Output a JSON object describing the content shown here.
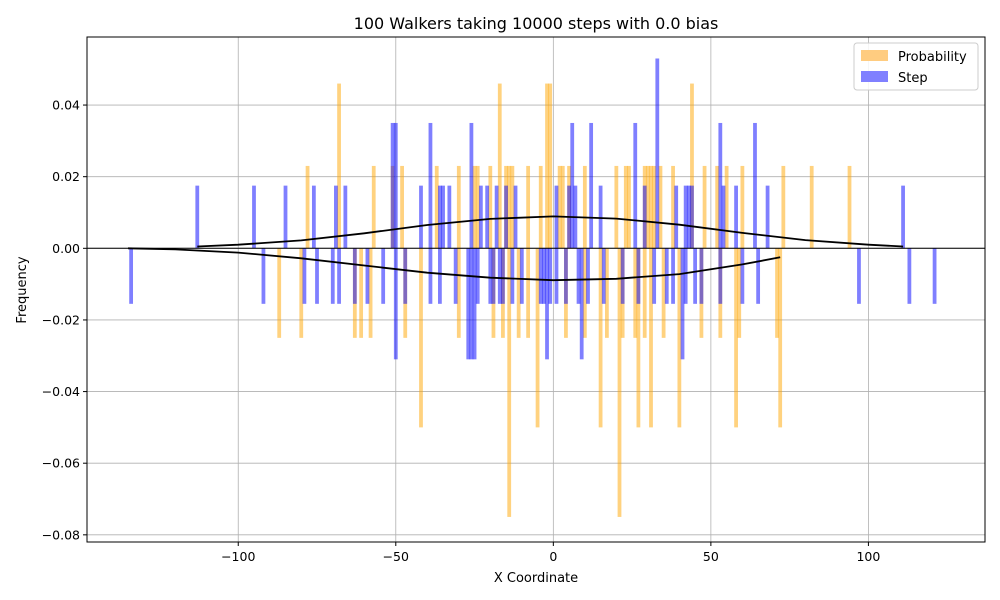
{
  "chart_data": {
    "type": "bar",
    "title": "100 Walkers taking 10000 steps with 0.0 bias",
    "xlabel": "X Coordinate",
    "ylabel": "Frequency",
    "xlim": [
      -148,
      137
    ],
    "ylim": [
      -0.082,
      0.059
    ],
    "xticks": [
      -100,
      -50,
      0,
      50,
      100
    ],
    "xtick_labels": [
      "−100",
      "−50",
      "0",
      "50",
      "100"
    ],
    "yticks": [
      -0.08,
      -0.06,
      -0.04,
      -0.02,
      0.0,
      0.02,
      0.04
    ],
    "ytick_labels": [
      "−0.08",
      "−0.06",
      "−0.04",
      "−0.02",
      "0.00",
      "0.02",
      "0.04"
    ],
    "grid": true,
    "legend": {
      "placement": "top-right",
      "entries": [
        {
          "name": "Probability",
          "color": "#FFCC80"
        },
        {
          "name": "Step",
          "color": "#8080FF"
        }
      ]
    },
    "bar_width": 1.2,
    "series": [
      {
        "name": "Probability",
        "color": "#FFA500",
        "opacity": 0.5,
        "points": [
          [
            -87,
            -0.025
          ],
          [
            -80,
            -0.025
          ],
          [
            -78,
            0.023
          ],
          [
            -68,
            0.046
          ],
          [
            -63,
            -0.025
          ],
          [
            -61,
            -0.025
          ],
          [
            -58,
            -0.025
          ],
          [
            -57,
            0.023
          ],
          [
            -51,
            0.023
          ],
          [
            -48,
            0.023
          ],
          [
            -47,
            -0.025
          ],
          [
            -42,
            -0.05
          ],
          [
            -37,
            0.023
          ],
          [
            -30,
            -0.025
          ],
          [
            -30,
            0.023
          ],
          [
            -25,
            0.023
          ],
          [
            -24,
            0.023
          ],
          [
            -20,
            0.023
          ],
          [
            -19,
            -0.025
          ],
          [
            -17,
            0.046
          ],
          [
            -16,
            -0.025
          ],
          [
            -15,
            0.023
          ],
          [
            -14,
            0.023
          ],
          [
            -14,
            -0.075
          ],
          [
            -13,
            0.023
          ],
          [
            -11,
            -0.025
          ],
          [
            -8,
            -0.025
          ],
          [
            -8,
            0.023
          ],
          [
            -5,
            -0.05
          ],
          [
            -4,
            0.023
          ],
          [
            -2,
            0.046
          ],
          [
            -1,
            0.046
          ],
          [
            2,
            0.023
          ],
          [
            3,
            0.023
          ],
          [
            4,
            -0.025
          ],
          [
            5,
            0.023
          ],
          [
            10,
            -0.025
          ],
          [
            10,
            0.023
          ],
          [
            15,
            -0.05
          ],
          [
            17,
            -0.025
          ],
          [
            20,
            0.023
          ],
          [
            21,
            -0.075
          ],
          [
            22,
            -0.025
          ],
          [
            23,
            0.023
          ],
          [
            24,
            0.023
          ],
          [
            26,
            -0.025
          ],
          [
            27,
            -0.05
          ],
          [
            29,
            -0.025
          ],
          [
            29,
            0.023
          ],
          [
            30,
            0.023
          ],
          [
            31,
            0.023
          ],
          [
            31,
            -0.05
          ],
          [
            32,
            0.023
          ],
          [
            34,
            0.023
          ],
          [
            35,
            -0.025
          ],
          [
            38,
            0.023
          ],
          [
            40,
            -0.05
          ],
          [
            44,
            0.046
          ],
          [
            47,
            -0.025
          ],
          [
            48,
            0.023
          ],
          [
            52,
            0.023
          ],
          [
            53,
            -0.025
          ],
          [
            55,
            0.023
          ],
          [
            58,
            -0.05
          ],
          [
            59,
            -0.025
          ],
          [
            60,
            0.023
          ],
          [
            71,
            -0.025
          ],
          [
            72,
            -0.05
          ],
          [
            73,
            0.023
          ],
          [
            82,
            0.023
          ],
          [
            94,
            0.023
          ]
        ]
      },
      {
        "name": "Step",
        "color": "#0000FF",
        "opacity": 0.5,
        "points": [
          [
            -134,
            -0.0155
          ],
          [
            -113,
            0.0175
          ],
          [
            -95,
            0.0175
          ],
          [
            -92,
            -0.0155
          ],
          [
            -85,
            0.0175
          ],
          [
            -79,
            -0.0155
          ],
          [
            -76,
            0.0175
          ],
          [
            -75,
            -0.0155
          ],
          [
            -70,
            -0.0155
          ],
          [
            -69,
            0.0175
          ],
          [
            -68,
            -0.0155
          ],
          [
            -66,
            0.0175
          ],
          [
            -63,
            -0.0155
          ],
          [
            -59,
            -0.0155
          ],
          [
            -54,
            -0.0155
          ],
          [
            -51,
            0.035
          ],
          [
            -50,
            -0.031
          ],
          [
            -50,
            0.035
          ],
          [
            -47,
            -0.0155
          ],
          [
            -42,
            0.0175
          ],
          [
            -39,
            -0.0155
          ],
          [
            -39,
            0.035
          ],
          [
            -36,
            0.0175
          ],
          [
            -36,
            -0.0155
          ],
          [
            -35,
            0.0175
          ],
          [
            -33,
            0.0175
          ],
          [
            -31,
            -0.0155
          ],
          [
            -27,
            -0.031
          ],
          [
            -26,
            0.035
          ],
          [
            -26,
            -0.031
          ],
          [
            -25,
            -0.031
          ],
          [
            -24,
            -0.0155
          ],
          [
            -23,
            0.0175
          ],
          [
            -21,
            0.0175
          ],
          [
            -20,
            -0.0155
          ],
          [
            -19,
            -0.0155
          ],
          [
            -18,
            0.0175
          ],
          [
            -17,
            -0.0155
          ],
          [
            -16,
            -0.0155
          ],
          [
            -15,
            0.0175
          ],
          [
            -13,
            -0.0155
          ],
          [
            -12,
            0.0175
          ],
          [
            -10,
            -0.0155
          ],
          [
            -4,
            -0.0155
          ],
          [
            -3,
            -0.0155
          ],
          [
            -2,
            -0.031
          ],
          [
            -1,
            -0.0155
          ],
          [
            1,
            -0.0155
          ],
          [
            1,
            0.0175
          ],
          [
            4,
            -0.0155
          ],
          [
            5,
            0.0175
          ],
          [
            6,
            0.035
          ],
          [
            7,
            0.0175
          ],
          [
            8,
            -0.0155
          ],
          [
            9,
            -0.031
          ],
          [
            11,
            -0.0155
          ],
          [
            12,
            0.035
          ],
          [
            15,
            0.0175
          ],
          [
            16,
            -0.0155
          ],
          [
            22,
            -0.0155
          ],
          [
            26,
            0.035
          ],
          [
            27,
            -0.0155
          ],
          [
            29,
            0.0175
          ],
          [
            32,
            -0.0155
          ],
          [
            33,
            0.053
          ],
          [
            36,
            -0.0155
          ],
          [
            38,
            -0.0155
          ],
          [
            39,
            0.0175
          ],
          [
            41,
            -0.031
          ],
          [
            42,
            -0.0155
          ],
          [
            42,
            0.0175
          ],
          [
            43,
            0.0175
          ],
          [
            44,
            0.0175
          ],
          [
            45,
            -0.0155
          ],
          [
            47,
            -0.0155
          ],
          [
            53,
            0.035
          ],
          [
            53,
            -0.0155
          ],
          [
            54,
            0.0175
          ],
          [
            58,
            0.0175
          ],
          [
            60,
            -0.0155
          ],
          [
            64,
            0.035
          ],
          [
            65,
            -0.0155
          ],
          [
            68,
            0.0175
          ],
          [
            97,
            -0.0155
          ],
          [
            111,
            0.0175
          ],
          [
            113,
            -0.0155
          ],
          [
            121,
            -0.0155
          ]
        ]
      }
    ],
    "curves": [
      {
        "color": "#000000",
        "points": [
          [
            -113,
            0.0005
          ],
          [
            -100,
            0.001
          ],
          [
            -80,
            0.0022
          ],
          [
            -60,
            0.0042
          ],
          [
            -40,
            0.0065
          ],
          [
            -20,
            0.0082
          ],
          [
            0,
            0.0089
          ],
          [
            20,
            0.0083
          ],
          [
            40,
            0.0066
          ],
          [
            60,
            0.0043
          ],
          [
            80,
            0.0023
          ],
          [
            100,
            0.001
          ],
          [
            111,
            0.0005
          ]
        ]
      },
      {
        "color": "#000000",
        "points": [
          [
            -135,
            0.0
          ],
          [
            -120,
            -0.0003
          ],
          [
            -100,
            -0.0012
          ],
          [
            -80,
            -0.0028
          ],
          [
            -60,
            -0.0048
          ],
          [
            -40,
            -0.0068
          ],
          [
            -20,
            -0.0082
          ],
          [
            0,
            -0.0089
          ],
          [
            20,
            -0.0085
          ],
          [
            40,
            -0.0072
          ],
          [
            60,
            -0.0045
          ],
          [
            72,
            -0.0025
          ]
        ]
      }
    ]
  }
}
